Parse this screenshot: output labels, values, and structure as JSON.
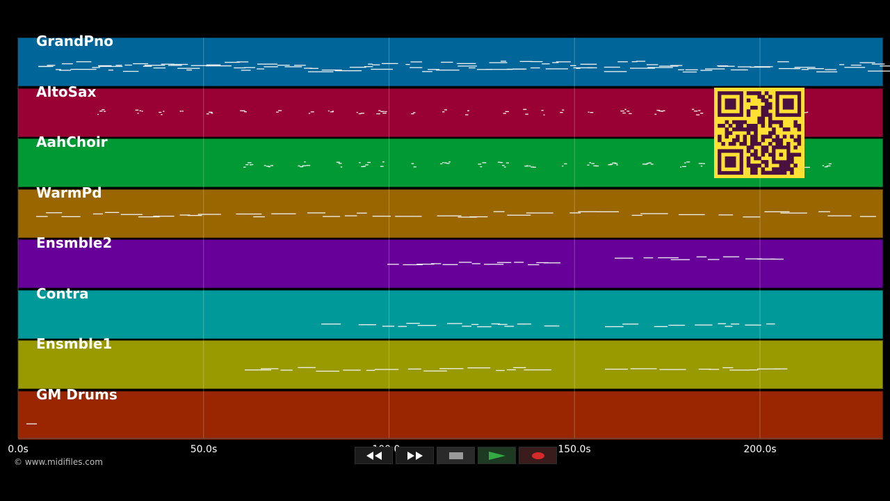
{
  "tracks": [
    {
      "name": "GrandPno",
      "color": "#006699"
    },
    {
      "name": "AltoSax",
      "color": "#990033"
    },
    {
      "name": "AahChoir",
      "color": "#009933"
    },
    {
      "name": "WarmPd",
      "color": "#996600"
    },
    {
      "name": "Ensmble2",
      "color": "#660099"
    },
    {
      "name": "Contra",
      "color": "#009999"
    },
    {
      "name": "Ensmble1",
      "color": "#999900"
    },
    {
      "name": "GM Drums",
      "color": "#992600"
    }
  ],
  "timeline": {
    "ticks": [
      "0.0s",
      "50.0s",
      "100.0s",
      "150.0s",
      "200.0s"
    ]
  },
  "copyright": "© www.midifiles.com",
  "transport": {
    "rewind": "rewind-icon",
    "forward": "fast-forward-icon",
    "stop": "stop-icon",
    "play": "play-icon",
    "record": "record-icon"
  },
  "qr": {
    "color_fg": "#4a1040",
    "color_bg": "#ffe033"
  }
}
